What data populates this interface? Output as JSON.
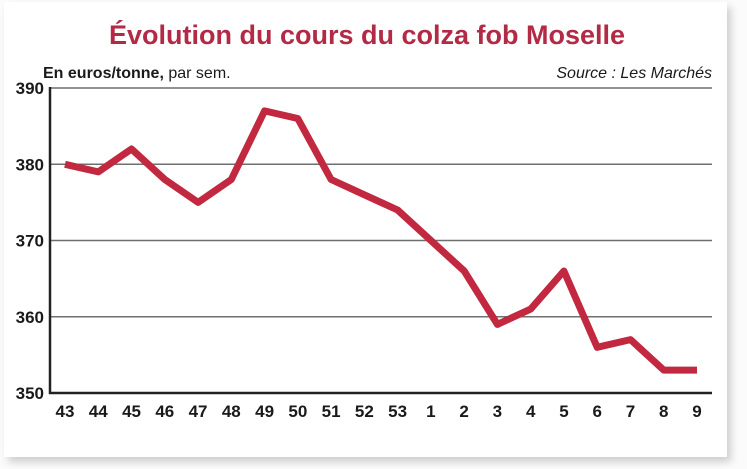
{
  "colors": {
    "title": "#b22a45",
    "line": "#c2283f",
    "grid": "#6f6f6f",
    "axis": "#222222",
    "text": "#1a1a1a"
  },
  "chart_data": {
    "type": "line",
    "title": "Évolution du cours du colza fob Moselle",
    "unit_bold": "En euros/tonne,",
    "unit_rest": " par sem.",
    "source": "Source : Les Marchés",
    "xlabel": "",
    "ylabel": "",
    "ylim": [
      350,
      390
    ],
    "yticks": [
      350,
      360,
      370,
      380,
      390
    ],
    "grid": true,
    "categories": [
      "43",
      "44",
      "45",
      "46",
      "47",
      "48",
      "49",
      "50",
      "51",
      "52",
      "53",
      "1",
      "2",
      "3",
      "4",
      "5",
      "6",
      "7",
      "8",
      "9"
    ],
    "series": [
      {
        "values": [
          380,
          379,
          382,
          378,
          375,
          378,
          387,
          386,
          378,
          376,
          374,
          370,
          366,
          359,
          361,
          366,
          356,
          357,
          353,
          353
        ]
      }
    ]
  }
}
